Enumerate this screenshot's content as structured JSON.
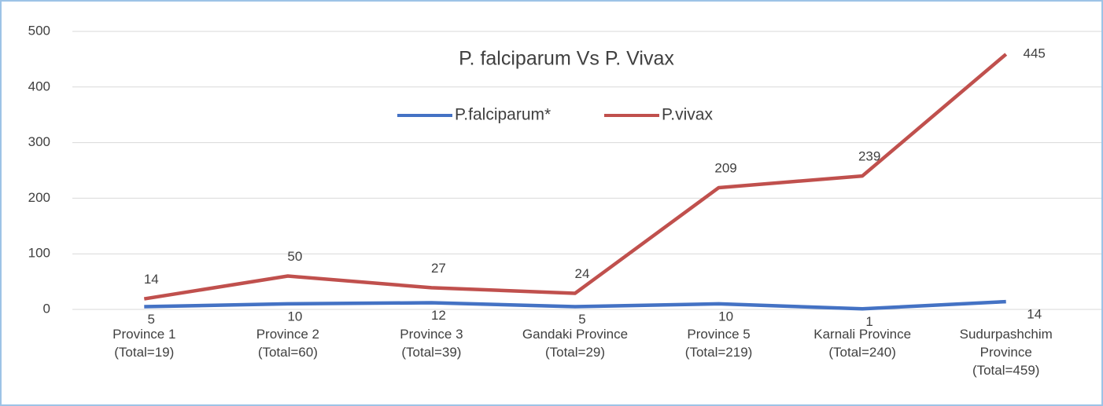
{
  "chart_data": {
    "type": "line",
    "stacked": true,
    "title": "P. falciparum Vs P. Vivax",
    "categories": [
      "Province 1\n(Total=19)",
      "Province 2\n(Total=60)",
      "Province 3\n(Total=39)",
      "Gandaki Province\n(Total=29)",
      "Province 5\n(Total=219)",
      "Karnali Province\n(Total=240)",
      "Sudurpashchim\nProvince\n(Total=459)"
    ],
    "series": [
      {
        "name": "P.falciparum*",
        "color": "#4472c4",
        "values": [
          5,
          10,
          12,
          5,
          10,
          1,
          14
        ]
      },
      {
        "name": "P.vivax",
        "color": "#c0504d",
        "values": [
          14,
          50,
          27,
          24,
          209,
          239,
          445
        ]
      }
    ],
    "ylim": [
      0,
      500
    ],
    "yticks": [
      0,
      100,
      200,
      300,
      400,
      500
    ],
    "grid": true
  }
}
